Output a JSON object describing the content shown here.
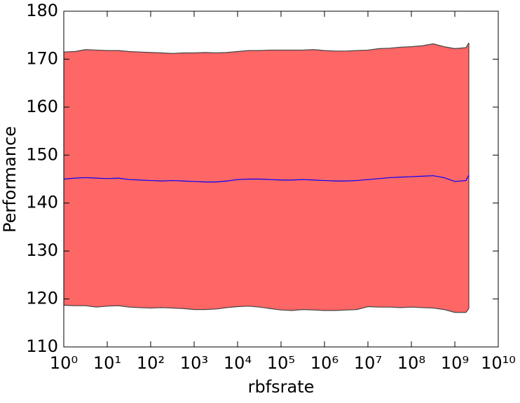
{
  "chart_data": {
    "type": "band-line",
    "xlabel": "rbfsrate",
    "ylabel": "Performance",
    "xscale": "log",
    "xlim": [
      1,
      10000000000
    ],
    "xticks": [
      {
        "value": 1,
        "label": "10⁰"
      },
      {
        "value": 10,
        "label": "10¹"
      },
      {
        "value": 100,
        "label": "10²"
      },
      {
        "value": 1000,
        "label": "10³"
      },
      {
        "value": 10000,
        "label": "10⁴"
      },
      {
        "value": 100000,
        "label": "10⁵"
      },
      {
        "value": 1000000,
        "label": "10⁶"
      },
      {
        "value": 10000000,
        "label": "10⁷"
      },
      {
        "value": 100000000,
        "label": "10⁸"
      },
      {
        "value": 1000000000,
        "label": "10⁹"
      },
      {
        "value": 10000000000,
        "label": "10¹⁰"
      }
    ],
    "ylim": [
      110,
      180
    ],
    "yticks": [
      110,
      120,
      130,
      140,
      150,
      160,
      170,
      180
    ],
    "x": [
      1,
      1.8,
      3.2,
      5.6,
      10,
      18,
      32,
      56,
      100,
      180,
      320,
      560,
      1000,
      1800,
      3200,
      5600,
      10000,
      18000,
      32000,
      56000,
      100000,
      180000,
      320000,
      560000,
      1000000,
      1800000,
      3200000,
      5600000,
      10000000,
      18000000,
      32000000,
      56000000,
      100000000,
      180000000,
      320000000,
      560000000,
      1000000000,
      1800000000,
      2100000000
    ],
    "band": {
      "color": "#ff6666",
      "edge_color": "#444444",
      "upper": [
        171.5,
        171.6,
        172,
        171.9,
        171.8,
        171.8,
        171.6,
        171.5,
        171.4,
        171.3,
        171.2,
        171.3,
        171.3,
        171.4,
        171.3,
        171.4,
        171.6,
        171.8,
        171.8,
        171.9,
        171.9,
        171.9,
        171.9,
        172,
        171.8,
        171.7,
        171.7,
        171.8,
        171.9,
        172.2,
        172.3,
        172.5,
        172.6,
        172.8,
        173.2,
        172.6,
        172.2,
        172.4,
        173.4
      ],
      "lower": [
        118.7,
        118.6,
        118.6,
        118.3,
        118.5,
        118.6,
        118.3,
        118.2,
        118.1,
        118.2,
        118.1,
        118,
        117.8,
        117.8,
        117.9,
        118.2,
        118.4,
        118.5,
        118.3,
        118,
        117.7,
        117.6,
        117.8,
        117.7,
        117.6,
        117.6,
        117.7,
        117.8,
        118.4,
        118.3,
        118.3,
        118.2,
        118.3,
        118.2,
        118.1,
        117.8,
        117.2,
        117.2,
        118
      ]
    },
    "series": [
      {
        "color": "#0000ff",
        "values": [
          145,
          145.2,
          145.3,
          145.2,
          145.1,
          145.2,
          144.9,
          144.8,
          144.7,
          144.6,
          144.7,
          144.6,
          144.5,
          144.4,
          144.4,
          144.6,
          144.9,
          145,
          145,
          144.9,
          144.8,
          144.8,
          144.9,
          144.8,
          144.7,
          144.6,
          144.6,
          144.7,
          144.9,
          145.1,
          145.3,
          145.4,
          145.5,
          145.6,
          145.7,
          145.3,
          144.5,
          144.7,
          145.8
        ]
      }
    ]
  }
}
